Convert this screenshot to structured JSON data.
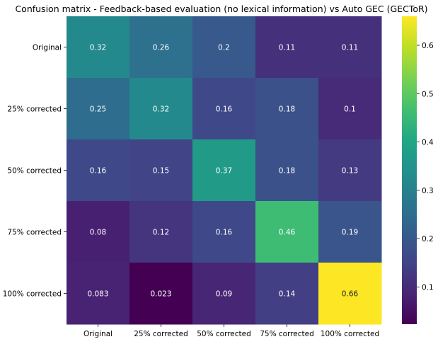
{
  "chart_data": {
    "type": "heatmap",
    "title": "Confusion matrix - Feedback-based evaluation (no lexical information) vs Auto GEC (GECToR)",
    "xlabel": "",
    "ylabel": "",
    "row_labels": [
      "Original",
      "25% corrected",
      "50% corrected",
      "75% corrected",
      "100% corrected"
    ],
    "col_labels": [
      "Original",
      "25% corrected",
      "50% corrected",
      "75% corrected",
      "100% corrected"
    ],
    "values": [
      [
        0.32,
        0.26,
        0.2,
        0.11,
        0.11
      ],
      [
        0.25,
        0.32,
        0.16,
        0.18,
        0.1
      ],
      [
        0.16,
        0.15,
        0.37,
        0.18,
        0.13
      ],
      [
        0.08,
        0.12,
        0.16,
        0.46,
        0.19
      ],
      [
        0.083,
        0.023,
        0.09,
        0.14,
        0.66
      ]
    ],
    "value_labels": [
      [
        "0.32",
        "0.26",
        "0.2",
        "0.11",
        "0.11"
      ],
      [
        "0.25",
        "0.32",
        "0.16",
        "0.18",
        "0.1"
      ],
      [
        "0.16",
        "0.15",
        "0.37",
        "0.18",
        "0.13"
      ],
      [
        "0.08",
        "0.12",
        "0.16",
        "0.46",
        "0.19"
      ],
      [
        "0.083",
        "0.023",
        "0.09",
        "0.14",
        "0.66"
      ]
    ],
    "colormap": "viridis",
    "vmin": 0.023,
    "vmax": 0.66,
    "colorbar_ticks": [
      0.1,
      0.2,
      0.3,
      0.4,
      0.5,
      0.6
    ],
    "colorbar_tick_labels": [
      "0.1",
      "0.2",
      "0.3",
      "0.4",
      "0.5",
      "0.6"
    ],
    "grid": false,
    "legend": "colorbar-right"
  }
}
